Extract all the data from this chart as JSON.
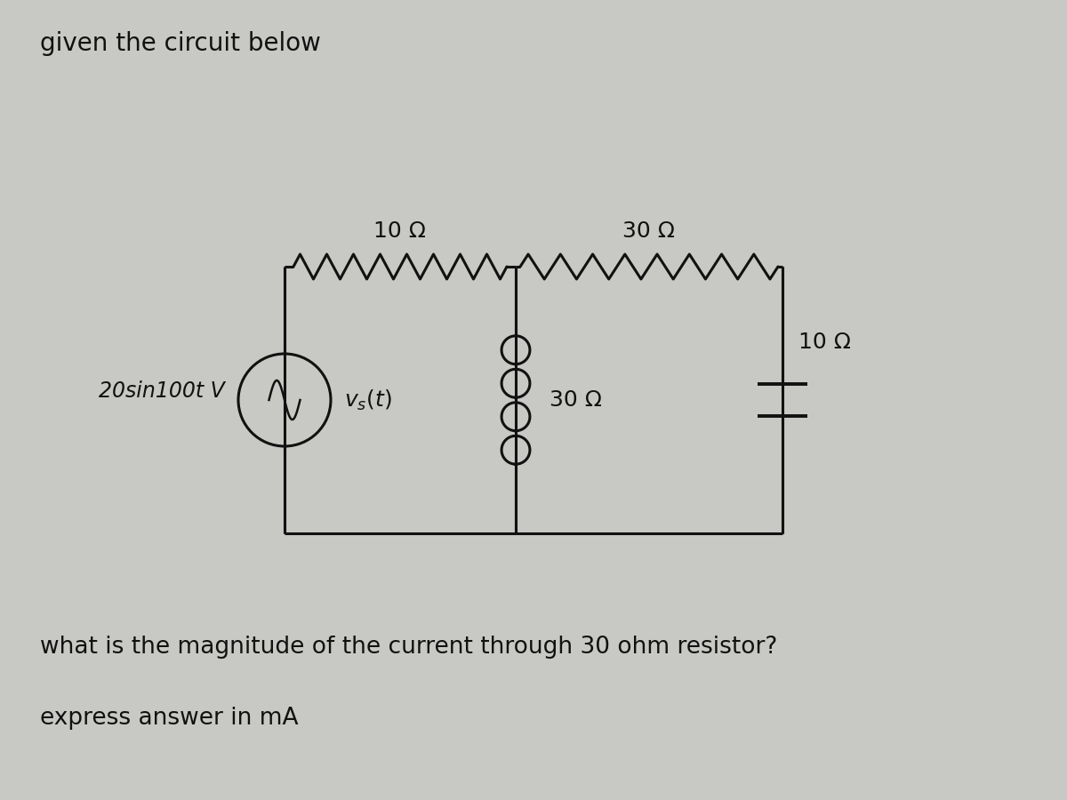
{
  "title": "given the circuit below",
  "question": "what is the magnitude of the current through 30 ohm resistor?",
  "answer_note": "express answer in mA",
  "source_label": "20sin100t V",
  "vs_label": "v_s(t)",
  "r1_label": "10 Ω",
  "r2_label": "30 Ω",
  "r3_label": "30 Ω",
  "r4_label": "10 Ω",
  "bg_color": "#c8c8c4",
  "line_color": "#111111",
  "text_color": "#111111",
  "font_size_title": 20,
  "font_size_label": 18,
  "font_size_text": 19
}
